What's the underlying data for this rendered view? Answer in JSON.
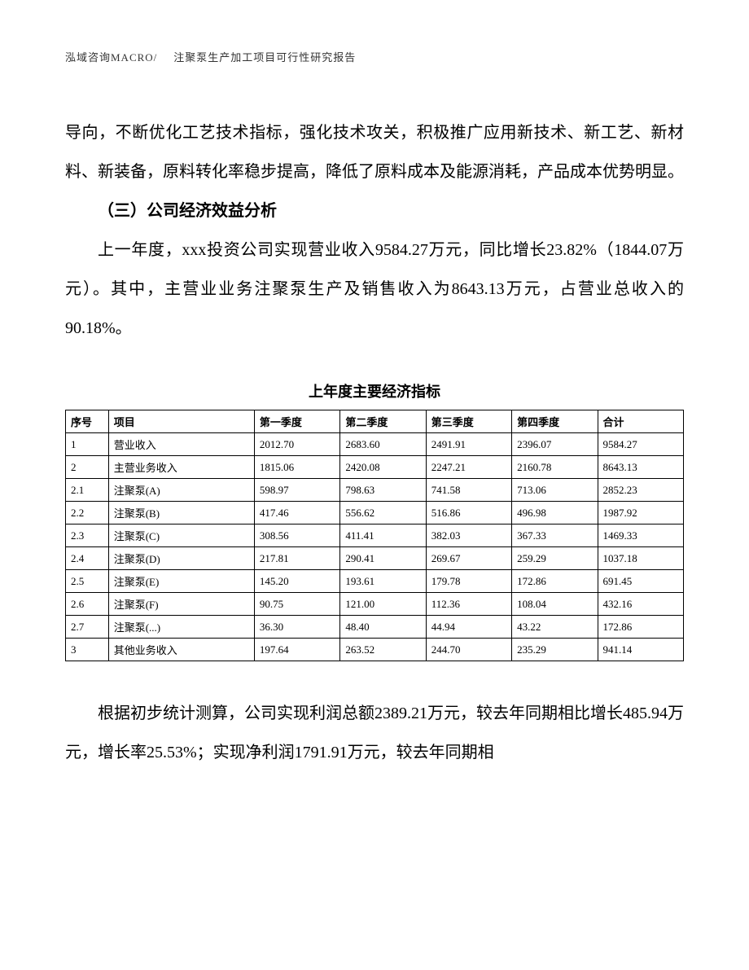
{
  "header": {
    "left": "泓域咨询MACRO/",
    "right": "注聚泵生产加工项目可行性研究报告"
  },
  "paragraphs": {
    "p1": "导向，不断优化工艺技术指标，强化技术攻关，积极推广应用新技术、新工艺、新材料、新装备，原料转化率稳步提高，降低了原料成本及能源消耗，产品成本优势明显。",
    "heading": "（三）公司经济效益分析",
    "p2": "上一年度，xxx投资公司实现营业收入9584.27万元，同比增长23.82%（1844.07万元）。其中，主营业业务注聚泵生产及销售收入为8643.13万元，占营业总收入的90.18%。",
    "p3": "根据初步统计测算，公司实现利润总额2389.21万元，较去年同期相比增长485.94万元，增长率25.53%；实现净利润1791.91万元，较去年同期相"
  },
  "table": {
    "title": "上年度主要经济指标",
    "columns": [
      "序号",
      "项目",
      "第一季度",
      "第二季度",
      "第三季度",
      "第四季度",
      "合计"
    ],
    "rows": [
      [
        "1",
        "营业收入",
        "2012.70",
        "2683.60",
        "2491.91",
        "2396.07",
        "9584.27"
      ],
      [
        "2",
        "主营业务收入",
        "1815.06",
        "2420.08",
        "2247.21",
        "2160.78",
        "8643.13"
      ],
      [
        "2.1",
        "注聚泵(A)",
        "598.97",
        "798.63",
        "741.58",
        "713.06",
        "2852.23"
      ],
      [
        "2.2",
        "注聚泵(B)",
        "417.46",
        "556.62",
        "516.86",
        "496.98",
        "1987.92"
      ],
      [
        "2.3",
        "注聚泵(C)",
        "308.56",
        "411.41",
        "382.03",
        "367.33",
        "1469.33"
      ],
      [
        "2.4",
        "注聚泵(D)",
        "217.81",
        "290.41",
        "269.67",
        "259.29",
        "1037.18"
      ],
      [
        "2.5",
        "注聚泵(E)",
        "145.20",
        "193.61",
        "179.78",
        "172.86",
        "691.45"
      ],
      [
        "2.6",
        "注聚泵(F)",
        "90.75",
        "121.00",
        "112.36",
        "108.04",
        "432.16"
      ],
      [
        "2.7",
        "注聚泵(...)",
        "36.30",
        "48.40",
        "44.94",
        "43.22",
        "172.86"
      ],
      [
        "3",
        "其他业务收入",
        "197.64",
        "263.52",
        "244.70",
        "235.29",
        "941.14"
      ]
    ]
  },
  "page_number": ""
}
